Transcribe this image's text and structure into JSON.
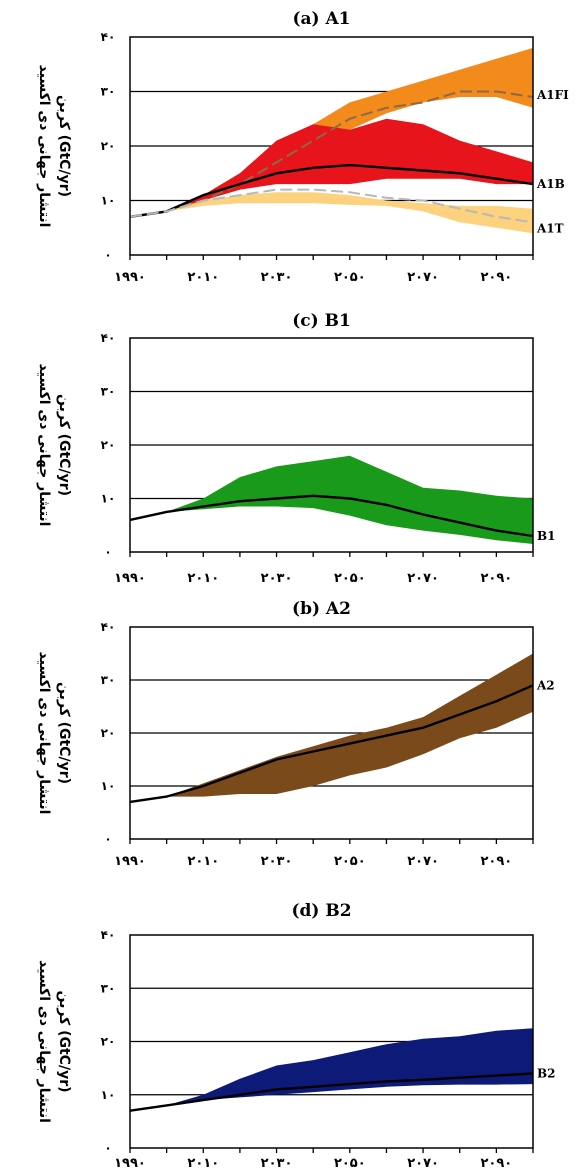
{
  "panel_ylabel_line1": "انتشار جهانی دی اکسید",
  "panel_ylabel_line2": "کربن (GtC/yr)",
  "colors": {
    "A1FI": "#f28a1c",
    "A1B": "#e8141b",
    "A1T": "#fdd27f",
    "B1": "#1a9a1a",
    "A2": "#7b4a1b",
    "B2": "#0d1a78"
  },
  "chart_data": [
    {
      "type": "area",
      "title": "(a) A1",
      "ylabel": "انتشار جهانی دی اکسید کربن (GtC/yr)",
      "x": [
        1990,
        2000,
        2010,
        2020,
        2030,
        2040,
        2050,
        2060,
        2070,
        2080,
        2090,
        2100
      ],
      "xtick_labels": [
        "۱۹۹۰",
        "۲۰۱۰",
        "۲۰۳۰",
        "۲۰۵۰",
        "۲۰۷۰",
        "۲۰۹۰"
      ],
      "ytick_labels": [
        "۰",
        "۱۰",
        "۲۰",
        "۳۰",
        "۴۰"
      ],
      "ylim": [
        0,
        40
      ],
      "xlim": [
        1990,
        2100
      ],
      "series": [
        {
          "name": "A1FI",
          "upper": [
            7,
            8,
            11,
            15,
            20,
            24,
            28,
            30,
            32,
            34,
            36,
            38
          ],
          "lower": [
            7,
            8,
            10,
            12,
            15,
            18,
            23,
            26,
            28,
            29,
            29,
            27
          ],
          "line": [
            7,
            8,
            10,
            13,
            17,
            21,
            25,
            27,
            28,
            30,
            30,
            29
          ],
          "line_style": "dashed"
        },
        {
          "name": "A1B",
          "upper": [
            7,
            8,
            11,
            15,
            21,
            24,
            23,
            25,
            24,
            21,
            19,
            17
          ],
          "lower": [
            7,
            8,
            10,
            12,
            13,
            13,
            13,
            14,
            14,
            14,
            13,
            13
          ],
          "line": [
            7,
            8,
            11,
            13,
            15,
            16,
            16.5,
            16,
            15.5,
            15,
            14,
            13
          ]
        },
        {
          "name": "A1T",
          "upper": [
            7,
            8,
            10,
            11,
            11.5,
            11.5,
            11,
            10,
            9.5,
            9,
            9,
            8.5
          ],
          "lower": [
            7,
            8,
            9,
            9.5,
            9.5,
            9.5,
            9.2,
            9,
            8,
            6,
            5,
            4
          ],
          "line": [
            7,
            8,
            10,
            11,
            12,
            12,
            11.5,
            10.5,
            10,
            8.5,
            7,
            6
          ],
          "line_style": "dashed"
        }
      ]
    },
    {
      "type": "area",
      "title": "(c) B1",
      "ylabel": "انتشار جهانی دی اکسید کربن (GtC/yr)",
      "x": [
        1990,
        2000,
        2010,
        2020,
        2030,
        2040,
        2050,
        2060,
        2070,
        2080,
        2090,
        2100
      ],
      "xtick_labels": [
        "۱۹۹۰",
        "۲۰۱۰",
        "۲۰۳۰",
        "۲۰۵۰",
        "۲۰۷۰",
        "۲۰۹۰"
      ],
      "ytick_labels": [
        "۰",
        "۱۰",
        "۲۰",
        "۳۰",
        "۴۰"
      ],
      "ylim": [
        0,
        40
      ],
      "xlim": [
        1990,
        2100
      ],
      "series": [
        {
          "name": "B1",
          "upper": [
            6,
            7.5,
            10,
            14,
            16,
            17,
            18,
            15,
            12,
            11.5,
            10.5,
            10
          ],
          "lower": [
            6,
            7.5,
            8,
            8.5,
            8.5,
            8.2,
            6.8,
            5,
            4,
            3.2,
            2.2,
            1.5
          ],
          "line": [
            6,
            7.5,
            8.5,
            9.5,
            10,
            10.5,
            10,
            8.8,
            7,
            5.5,
            4,
            3
          ]
        }
      ]
    },
    {
      "type": "area",
      "title": "(b) A2",
      "ylabel": "انتشار جهانی دی اکسید کربن (GtC/yr)",
      "x": [
        1990,
        2000,
        2010,
        2020,
        2030,
        2040,
        2050,
        2060,
        2070,
        2080,
        2090,
        2100
      ],
      "xtick_labels": [
        "۱۹۹۰",
        "۲۰۱۰",
        "۲۰۳۰",
        "۲۰۵۰",
        "۲۰۷۰",
        "۲۰۹۰"
      ],
      "ytick_labels": [
        "۰",
        "۱۰",
        "۲۰",
        "۳۰",
        "۴۰"
      ],
      "ylim": [
        0,
        40
      ],
      "xlim": [
        1990,
        2100
      ],
      "series": [
        {
          "name": "A2",
          "upper": [
            7,
            8,
            10.5,
            13,
            15.5,
            17.5,
            19.5,
            21,
            23,
            27,
            31,
            35
          ],
          "lower": [
            7,
            8,
            8,
            8.5,
            8.5,
            10,
            12,
            13.5,
            16,
            19,
            21,
            24
          ],
          "line": [
            7,
            8,
            10,
            12.5,
            15,
            16.5,
            18,
            19.5,
            21,
            23.5,
            26,
            29
          ]
        }
      ]
    },
    {
      "type": "area",
      "title": "(d) B2",
      "ylabel": "انتشار جهانی دی اکسید کربن (GtC/yr)",
      "x": [
        1990,
        2000,
        2010,
        2020,
        2030,
        2040,
        2050,
        2060,
        2070,
        2080,
        2090,
        2100
      ],
      "xtick_labels": [
        "۱۹۹۰",
        "۲۰۱۰",
        "۲۰۳۰",
        "۲۰۵۰",
        "۲۰۷۰",
        "۲۰۹۰"
      ],
      "ytick_labels": [
        "۰",
        "۱۰",
        "۲۰",
        "۳۰",
        "۴۰"
      ],
      "ylim": [
        0,
        40
      ],
      "xlim": [
        1990,
        2100
      ],
      "series": [
        {
          "name": "B2",
          "upper": [
            7,
            8,
            10,
            13,
            15.5,
            16.5,
            18,
            19.5,
            20.5,
            21,
            22,
            22.5
          ],
          "lower": [
            7,
            8,
            9,
            9.5,
            10,
            10.5,
            11,
            11.5,
            11.8,
            11.9,
            11.9,
            12
          ],
          "line": [
            7,
            8,
            9,
            10,
            11,
            11.5,
            12,
            12.5,
            12.8,
            13.2,
            13.6,
            14
          ]
        }
      ]
    }
  ]
}
